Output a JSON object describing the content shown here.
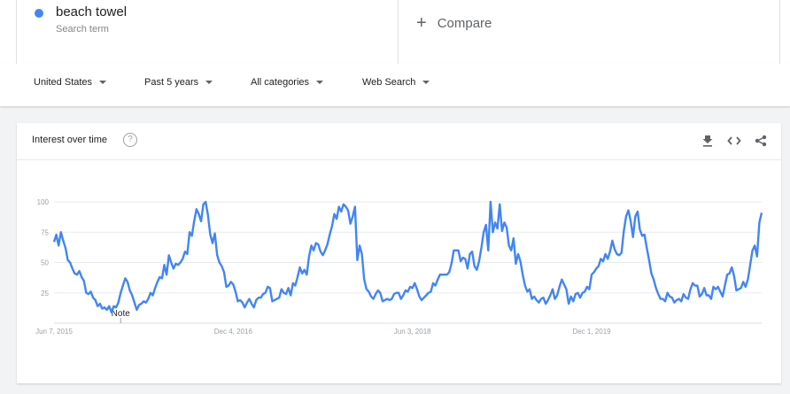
{
  "search_term": {
    "name": "beach towel",
    "subtitle": "Search term",
    "color": "#4285f4"
  },
  "compare": {
    "label": "Compare",
    "icon": "plus-icon"
  },
  "filters": {
    "region": "United States",
    "time": "Past 5 years",
    "category": "All categories",
    "property": "Web Search"
  },
  "card": {
    "title": "Interest over time",
    "icons": [
      "help-icon",
      "download-icon",
      "embed-icon",
      "share-icon"
    ]
  },
  "chart_data": {
    "type": "line",
    "title": "Interest over time",
    "y_ticks": [
      25,
      50,
      75,
      100
    ],
    "ylim": [
      0,
      100
    ],
    "x_tick_labels": [
      "Jun 7, 2015",
      "Dec 4, 2016",
      "Jun 3, 2018",
      "Dec 1, 2019"
    ],
    "x_tick_week_index": [
      0,
      78,
      156,
      234
    ],
    "annotation": {
      "label": "Note",
      "week_index": 29
    },
    "series": [
      {
        "name": "beach towel",
        "color": "#4285f4",
        "values": [
          67,
          73,
          64,
          75,
          68,
          62,
          52,
          50,
          45,
          41,
          40,
          43,
          38,
          35,
          25,
          24,
          26,
          21,
          19,
          14,
          16,
          12,
          13,
          11,
          14,
          9,
          14,
          13,
          17,
          25,
          31,
          37,
          34,
          27,
          23,
          17,
          11,
          15,
          16,
          18,
          17,
          20,
          25,
          23,
          29,
          34,
          38,
          37,
          48,
          40,
          56,
          50,
          45,
          49,
          48,
          50,
          53,
          59,
          57,
          75,
          72,
          84,
          94,
          90,
          84,
          98,
          100,
          89,
          73,
          66,
          74,
          56,
          50,
          47,
          42,
          30,
          31,
          34,
          32,
          26,
          18,
          19,
          17,
          13,
          17,
          20,
          16,
          13,
          19,
          21,
          21,
          24,
          25,
          30,
          29,
          18,
          19,
          20,
          21,
          28,
          25,
          24,
          29,
          23,
          33,
          31,
          38,
          46,
          41,
          44,
          40,
          55,
          64,
          60,
          66,
          65,
          59,
          56,
          60,
          65,
          73,
          80,
          90,
          86,
          96,
          92,
          98,
          96,
          93,
          82,
          88,
          96,
          52,
          64,
          57,
          36,
          28,
          26,
          22,
          20,
          24,
          27,
          25,
          18,
          19,
          20,
          19,
          20,
          24,
          25,
          25,
          20,
          23,
          27,
          26,
          30,
          29,
          33,
          28,
          22,
          19,
          21,
          23,
          25,
          26,
          33,
          31,
          36,
          40,
          40,
          40,
          40,
          42,
          49,
          60,
          60,
          60,
          51,
          54,
          53,
          45,
          57,
          59,
          47,
          44,
          51,
          62,
          75,
          81,
          60,
          100,
          75,
          83,
          78,
          98,
          76,
          83,
          79,
          64,
          60,
          70,
          49,
          57,
          51,
          40,
          31,
          26,
          28,
          20,
          22,
          19,
          17,
          20,
          21,
          16,
          19,
          23,
          28,
          20,
          23,
          30,
          36,
          32,
          28,
          16,
          22,
          18,
          24,
          25,
          21,
          25,
          26,
          30,
          28,
          40,
          42,
          45,
          47,
          53,
          51,
          57,
          53,
          59,
          68,
          61,
          57,
          56,
          58,
          76,
          88,
          93,
          84,
          71,
          88,
          92,
          77,
          72,
          73,
          62,
          52,
          41,
          36,
          29,
          24,
          20,
          20,
          18,
          25,
          22,
          21,
          17,
          19,
          20,
          18,
          24,
          21,
          20,
          28,
          33,
          31,
          31,
          22,
          24,
          29,
          23,
          23,
          20,
          30,
          28,
          30,
          26,
          22,
          31,
          40,
          41,
          46,
          39,
          27,
          28,
          29,
          34,
          30,
          36,
          48,
          60,
          64,
          55,
          83,
          91
        ]
      }
    ]
  }
}
